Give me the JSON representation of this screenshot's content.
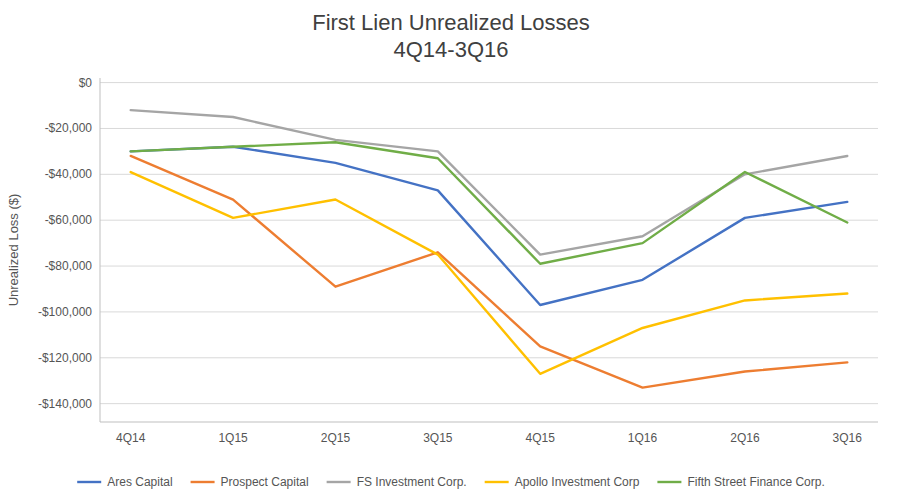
{
  "chart_data": {
    "type": "line",
    "title": "First Lien Unrealized Losses",
    "subtitle": "4Q14-3Q16",
    "y_label": "Unrealized Loss ($)",
    "categories": [
      "4Q14",
      "1Q15",
      "2Q15",
      "3Q15",
      "4Q15",
      "1Q16",
      "2Q16",
      "3Q16"
    ],
    "series": [
      {
        "name": "Ares Capital",
        "color": "#4472C4",
        "values": [
          -30000,
          -28000,
          -35000,
          -47000,
          -97000,
          -86000,
          -59000,
          -52000
        ]
      },
      {
        "name": "Prospect Capital",
        "color": "#ED7D31",
        "values": [
          -32000,
          -51000,
          -89000,
          -74000,
          -115000,
          -133000,
          -126000,
          -122000
        ]
      },
      {
        "name": "FS Investment Corp.",
        "color": "#A5A5A5",
        "values": [
          -12000,
          -15000,
          -25000,
          -30000,
          -75000,
          -67000,
          -40000,
          -32000
        ]
      },
      {
        "name": "Apollo Investment Corp",
        "color": "#FFC000",
        "values": [
          -39000,
          -59000,
          -51000,
          -75000,
          -127000,
          -107000,
          -95000,
          -92000
        ]
      },
      {
        "name": "Fifth Street Finance Corp.",
        "color": "#70AD47",
        "values": [
          -30000,
          -28000,
          -26000,
          -33000,
          -79000,
          -70000,
          -39000,
          -61000
        ]
      }
    ],
    "ylim": [
      -148000,
      2000
    ],
    "yticks": [
      {
        "value": 0,
        "label": "$0"
      },
      {
        "value": -20000,
        "label": "-$20,000"
      },
      {
        "value": -40000,
        "label": "-$40,000"
      },
      {
        "value": -60000,
        "label": "-$60,000"
      },
      {
        "value": -80000,
        "label": "-$80,000"
      },
      {
        "value": -100000,
        "label": "-$100,000"
      },
      {
        "value": -120000,
        "label": "-$120,000"
      },
      {
        "value": -140000,
        "label": "-$140,000"
      }
    ],
    "grid": true,
    "legend": "bottom"
  }
}
